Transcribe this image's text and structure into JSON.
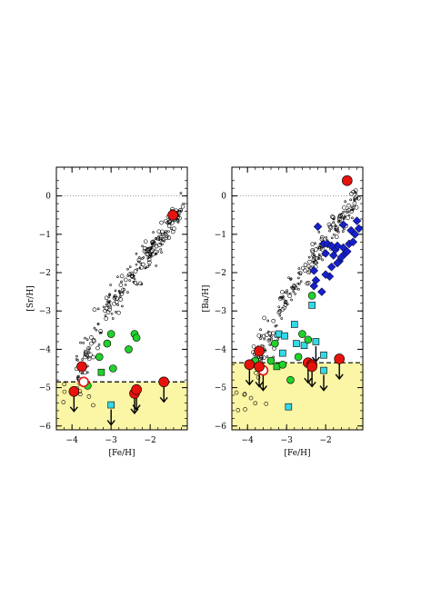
{
  "chart_data": [
    {
      "type": "scatter",
      "xlabel": "[Fe/H]",
      "ylabel": "[Sr/H]",
      "xlim": [
        -4.4,
        -1.05
      ],
      "ylim": [
        -6.1,
        0.75
      ],
      "xticks": [
        -4,
        -3,
        -2
      ],
      "xtick_labels": [
        "−4",
        "−3",
        "−2"
      ],
      "yticks": [
        0,
        -1,
        -2,
        -3,
        -4,
        -5,
        -6
      ],
      "ytick_labels": [
        "0",
        "−1",
        "−2",
        "−3",
        "−4",
        "−5",
        "−6"
      ],
      "solar_line": 0,
      "detection_limit": -4.85,
      "shaded_region_color": "#fbf6a5",
      "colors": {
        "red": "#e8120c",
        "green": "#22d12a",
        "cyan": "#33d9e6",
        "blue": "#1620c8"
      },
      "red_circles": [
        [
          -3.75,
          -4.45
        ],
        [
          -3.95,
          -5.1
        ],
        [
          -2.4,
          -5.15
        ],
        [
          -2.35,
          -5.05
        ],
        [
          -1.65,
          -4.85
        ],
        [
          -1.42,
          -0.5
        ]
      ],
      "red_open": [
        [
          -3.7,
          -4.85
        ]
      ],
      "green_circles": [
        [
          -3.6,
          -4.95
        ],
        [
          -3.3,
          -4.2
        ],
        [
          -3.1,
          -3.85
        ],
        [
          -3.0,
          -3.6
        ],
        [
          -2.95,
          -4.5
        ],
        [
          -2.55,
          -4.0
        ],
        [
          -2.4,
          -3.6
        ],
        [
          -2.35,
          -3.7
        ]
      ],
      "green_squares": [
        [
          -3.25,
          -4.6
        ]
      ],
      "cyan_squares": [
        [
          -3.0,
          -5.45
        ]
      ],
      "upper_limit_x": [
        -3.95,
        -3.0,
        -2.4,
        -2.35,
        -1.65
      ]
    },
    {
      "type": "scatter",
      "xlabel": "[Fe/H]",
      "ylabel": "[Ba/H]",
      "xlim": [
        -4.4,
        -1.05
      ],
      "ylim": [
        -6.1,
        0.75
      ],
      "xticks": [
        -4,
        -3,
        -2
      ],
      "xtick_labels": [
        "−4",
        "−3",
        "−2"
      ],
      "yticks": [
        0,
        -1,
        -2,
        -3,
        -4,
        -5,
        -6
      ],
      "ytick_labels": [
        "0",
        "−1",
        "−2",
        "−3",
        "−4",
        "−5",
        "−6"
      ],
      "solar_line": 0,
      "detection_limit": -4.35,
      "shaded_region_color": "#fbf6a5",
      "red_circles": [
        [
          -3.95,
          -4.4
        ],
        [
          -3.7,
          -4.05
        ],
        [
          -3.7,
          -4.45
        ],
        [
          -2.45,
          -4.35
        ],
        [
          -2.35,
          -4.4
        ],
        [
          -2.35,
          -4.45
        ],
        [
          -1.65,
          -4.25
        ],
        [
          -1.45,
          0.4
        ]
      ],
      "red_open": [
        [
          -3.6,
          -4.55
        ]
      ],
      "green_circles": [
        [
          -3.8,
          -4.3
        ],
        [
          -3.4,
          -4.3
        ],
        [
          -3.3,
          -3.85
        ],
        [
          -3.1,
          -4.4
        ],
        [
          -2.9,
          -4.8
        ],
        [
          -2.7,
          -4.2
        ],
        [
          -2.6,
          -3.6
        ],
        [
          -2.45,
          -3.75
        ],
        [
          -2.35,
          -2.6
        ]
      ],
      "green_squares": [
        [
          -3.25,
          -4.45
        ]
      ],
      "cyan_squares": [
        [
          -3.2,
          -3.6
        ],
        [
          -3.1,
          -4.1
        ],
        [
          -3.05,
          -3.65
        ],
        [
          -2.95,
          -5.5
        ],
        [
          -2.8,
          -3.35
        ],
        [
          -2.75,
          -3.85
        ],
        [
          -2.55,
          -3.9
        ],
        [
          -2.35,
          -2.85
        ],
        [
          -2.25,
          -3.8
        ],
        [
          -2.05,
          -4.15
        ],
        [
          -2.05,
          -4.55
        ]
      ],
      "blue_diamonds": [
        [
          -2.2,
          -0.8
        ],
        [
          -2.05,
          -1.25
        ],
        [
          -2.0,
          -1.5
        ],
        [
          -1.95,
          -1.25
        ],
        [
          -1.85,
          -1.85
        ],
        [
          -1.8,
          -1.55
        ],
        [
          -1.75,
          -1.4
        ],
        [
          -1.7,
          -1.3
        ],
        [
          -1.65,
          -1.7
        ],
        [
          -1.6,
          -1.6
        ],
        [
          -1.55,
          -1.35
        ],
        [
          -1.5,
          -1.5
        ],
        [
          -1.45,
          -1.45
        ],
        [
          -1.4,
          -1.25
        ],
        [
          -1.35,
          -0.9
        ],
        [
          -1.3,
          -1.2
        ],
        [
          -1.25,
          -1.0
        ],
        [
          -1.2,
          -0.65
        ],
        [
          -1.15,
          -0.85
        ],
        [
          -2.3,
          -1.95
        ],
        [
          -2.25,
          -2.2
        ],
        [
          -2.1,
          -2.5
        ],
        [
          -1.9,
          -2.1
        ],
        [
          -1.55,
          -0.75
        ],
        [
          -1.85,
          -1.3
        ],
        [
          -2.0,
          -2.05
        ],
        [
          -2.3,
          -2.35
        ],
        [
          -1.7,
          -1.75
        ]
      ],
      "upper_limit_x": [
        -3.95,
        -3.7,
        -3.6,
        -2.45,
        -2.35,
        -2.3,
        -2.25,
        -2.05,
        -1.65
      ]
    }
  ]
}
